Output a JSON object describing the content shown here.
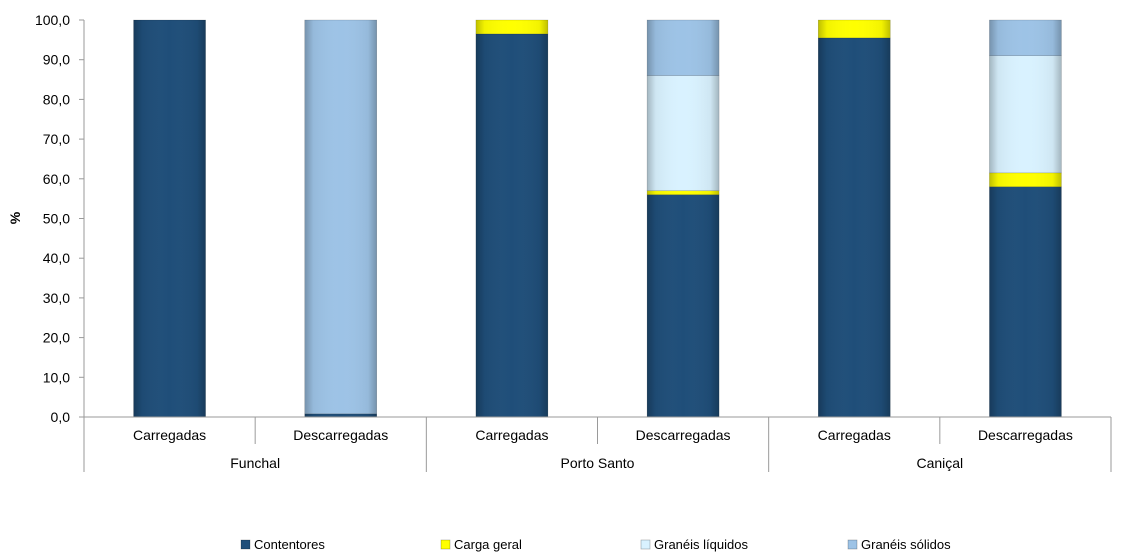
{
  "chart_data": {
    "type": "bar",
    "stacked": true,
    "ylabel": "%",
    "ylim": [
      0,
      100
    ],
    "yticks": [
      "0,0",
      "10,0",
      "20,0",
      "30,0",
      "40,0",
      "50,0",
      "60,0",
      "70,0",
      "80,0",
      "90,0",
      "100,0"
    ],
    "categories": [
      {
        "group": "Funchal",
        "label": "Carregadas"
      },
      {
        "group": "Funchal",
        "label": "Descarregadas"
      },
      {
        "group": "Porto Santo",
        "label": "Carregadas"
      },
      {
        "group": "Porto Santo",
        "label": "Descarregadas"
      },
      {
        "group": "Caniçal",
        "label": "Carregadas"
      },
      {
        "group": "Caniçal",
        "label": "Descarregadas"
      }
    ],
    "groups": [
      "Funchal",
      "Porto Santo",
      "Caniçal"
    ],
    "series": [
      {
        "name": "Contentores",
        "color": "#1F4E79",
        "values": [
          100.0,
          0.8,
          96.5,
          56.0,
          95.5,
          58.0
        ]
      },
      {
        "name": "Carga geral",
        "color": "#FFFF00",
        "values": [
          0.0,
          0.0,
          3.5,
          1.0,
          4.5,
          3.5
        ]
      },
      {
        "name": "Granéis líquidos",
        "color": "#D9F2FF",
        "values": [
          0.0,
          0.0,
          0.0,
          29.0,
          0.0,
          29.5
        ]
      },
      {
        "name": "Granéis sólidos",
        "color": "#9DC3E6",
        "values": [
          0.0,
          99.2,
          0.0,
          14.0,
          0.0,
          9.0
        ]
      }
    ],
    "grid": false,
    "legend_position": "bottom"
  }
}
